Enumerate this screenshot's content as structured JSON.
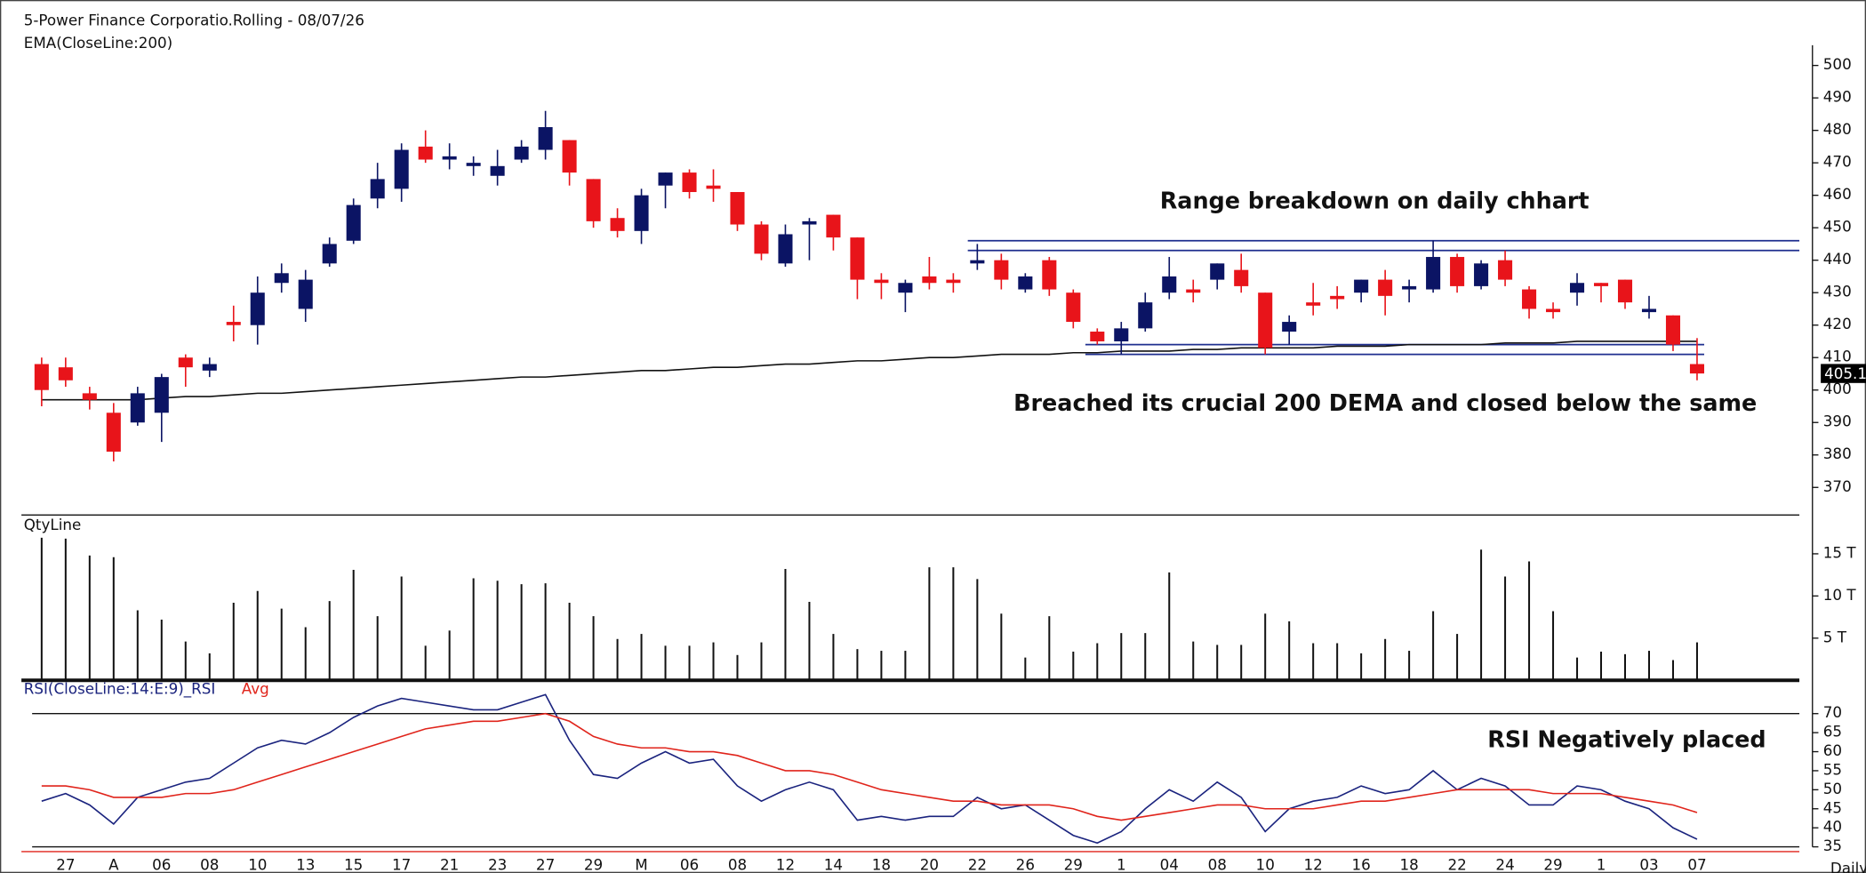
{
  "chart_data": [
    {
      "type": "candlestick",
      "title": "5-Power Finance Corporatio.Rolling - 08/07/26",
      "open": [
        408,
        407,
        399,
        393,
        390,
        393,
        410,
        406,
        421,
        420,
        433,
        425,
        439,
        446,
        459,
        462,
        475,
        471,
        469,
        466,
        471,
        474,
        477,
        465,
        453,
        449,
        463,
        467,
        463,
        461,
        451,
        439,
        451,
        454,
        447,
        434,
        430,
        435,
        434,
        439,
        440,
        431,
        440,
        430,
        418,
        415,
        419,
        430,
        431,
        434,
        437,
        430,
        418,
        427,
        429,
        430,
        434,
        431,
        431,
        441,
        432,
        440,
        431,
        425,
        430,
        433,
        434,
        424,
        423,
        408
      ],
      "high": [
        410,
        410,
        401,
        396,
        401,
        405,
        411,
        410,
        426,
        435,
        439,
        437,
        447,
        459,
        470,
        476,
        480,
        476,
        472,
        474,
        477,
        486,
        477,
        465,
        456,
        462,
        467,
        468,
        468,
        461,
        452,
        451,
        453,
        454,
        447,
        436,
        434,
        441,
        436,
        445,
        442,
        436,
        441,
        431,
        419,
        421,
        430,
        441,
        434,
        439,
        442,
        430,
        423,
        433,
        432,
        434,
        437,
        434,
        446,
        442,
        440,
        443,
        432,
        427,
        436,
        433,
        434,
        429,
        423,
        416
      ],
      "low": [
        395,
        401,
        394,
        378,
        389,
        384,
        401,
        404,
        415,
        414,
        430,
        421,
        438,
        445,
        456,
        458,
        470,
        468,
        466,
        463,
        470,
        471,
        463,
        450,
        447,
        445,
        456,
        459,
        458,
        449,
        440,
        438,
        440,
        443,
        428,
        428,
        424,
        431,
        430,
        437,
        431,
        430,
        429,
        419,
        414,
        411,
        418,
        428,
        427,
        431,
        430,
        411,
        414,
        423,
        425,
        427,
        423,
        427,
        430,
        430,
        431,
        432,
        422,
        422,
        426,
        427,
        425,
        422,
        412,
        403
      ],
      "close": [
        400,
        403,
        397,
        381,
        399,
        404,
        407,
        408,
        420,
        430,
        436,
        434,
        445,
        457,
        465,
        474,
        471,
        472,
        470,
        469,
        475,
        481,
        467,
        452,
        449,
        460,
        467,
        461,
        462,
        451,
        442,
        448,
        452,
        447,
        434,
        433,
        433,
        433,
        433,
        440,
        434,
        435,
        431,
        421,
        415,
        419,
        427,
        435,
        430,
        439,
        432,
        413,
        421,
        426,
        428,
        434,
        429,
        432,
        441,
        432,
        439,
        434,
        425,
        424,
        433,
        432,
        427,
        425,
        414,
        405.1
      ],
      "up_color": "#0b1464",
      "down_color": "#e8141a",
      "series": [
        {
          "name": "EMA(CloseLine:200)",
          "color": "#111111",
          "values": [
            397,
            397,
            397,
            397,
            397,
            397.5,
            398,
            398,
            398.5,
            399,
            399,
            399.5,
            400,
            400.5,
            401,
            401.5,
            402,
            402.5,
            403,
            403.5,
            404,
            404,
            404.5,
            405,
            405.5,
            406,
            406,
            406.5,
            407,
            407,
            407.5,
            408,
            408,
            408.5,
            409,
            409,
            409.5,
            410,
            410,
            410.5,
            411,
            411,
            411,
            411.5,
            411.5,
            412,
            412,
            412,
            412.5,
            412.5,
            413,
            413,
            413,
            413,
            413.5,
            413.5,
            413.5,
            414,
            414,
            414,
            414,
            414.5,
            414.5,
            414.5,
            415,
            415,
            415,
            415,
            415,
            415
          ]
        }
      ],
      "levels": [
        446,
        443,
        414,
        411
      ],
      "level_color": "#1f2f8f",
      "ylim": [
        361.5,
        516.5
      ],
      "yticks": [
        370,
        380,
        390,
        400,
        410,
        420,
        430,
        440,
        450,
        460,
        470,
        480,
        490,
        500
      ],
      "annotations": [
        "Range breakdown on daily chhart",
        "Breached its crucial 200 DEMA and closed below the same"
      ]
    },
    {
      "type": "bar",
      "series": [
        {
          "name": "QtyLine",
          "color": "#111111",
          "values": [
            16.9,
            16.8,
            14.8,
            14.6,
            8.3,
            7.2,
            4.6,
            3.2,
            9.2,
            10.6,
            8.5,
            6.3,
            9.4,
            13.1,
            7.6,
            12.3,
            4.1,
            5.9,
            12.1,
            11.8,
            11.4,
            11.5,
            9.2,
            7.6,
            4.9,
            5.5,
            4.1,
            4.1,
            4.5,
            3.0,
            4.5,
            13.2,
            9.3,
            5.5,
            3.7,
            3.5,
            3.5,
            13.4,
            13.4,
            12.0,
            7.9,
            2.7,
            7.6,
            3.4,
            4.4,
            5.6,
            5.6,
            12.8,
            4.6,
            4.2,
            4.2,
            7.9,
            7.0,
            4.4,
            4.4,
            3.2,
            4.9,
            3.5,
            8.2,
            5.5,
            15.5,
            12.3,
            14.1,
            8.2,
            2.7,
            3.4,
            3.1,
            3.5,
            2.4,
            4.5
          ]
        }
      ],
      "ylim": [
        0,
        19.6
      ],
      "yticks": [
        {
          "value": 5,
          "label": "5 T"
        },
        {
          "value": 10,
          "label": "10 T"
        },
        {
          "value": 15,
          "label": "15 T"
        }
      ]
    },
    {
      "type": "line",
      "categories": [
        null,
        "27",
        null,
        "A",
        null,
        "06",
        null,
        "08",
        null,
        "10",
        null,
        "13",
        null,
        "15",
        null,
        "17",
        null,
        "21",
        null,
        "23",
        null,
        "27",
        null,
        "29",
        null,
        "M",
        null,
        "06",
        null,
        "08",
        null,
        "12",
        null,
        "14",
        null,
        "18",
        null,
        "20",
        null,
        "22",
        null,
        "26",
        null,
        "29",
        null,
        "1",
        null,
        "04",
        null,
        "08",
        null,
        "10",
        null,
        "12",
        null,
        "16",
        null,
        "18",
        null,
        "22",
        null,
        "24",
        null,
        "29",
        null,
        "1",
        null,
        "03",
        null,
        "07"
      ],
      "period": "Daily",
      "series": [
        {
          "name": "RSI(CloseLine:14:E:9)_RSI",
          "color": "#1a237e",
          "values": [
            47,
            49,
            46,
            41,
            48,
            50,
            52,
            53,
            57,
            61,
            63,
            62,
            65,
            69,
            72,
            74,
            73,
            72,
            71,
            71,
            73,
            75,
            63,
            54,
            53,
            57,
            60,
            57,
            58,
            51,
            47,
            50,
            52,
            50,
            42,
            43,
            42,
            43,
            43,
            48,
            45,
            46,
            42,
            38,
            36,
            39,
            45,
            50,
            47,
            52,
            48,
            39,
            45,
            47,
            48,
            51,
            49,
            50,
            55,
            50,
            53,
            51,
            46,
            46,
            51,
            50,
            47,
            45,
            40,
            37
          ]
        },
        {
          "name": "Avg",
          "color": "#e0241b",
          "values": [
            51,
            51,
            50,
            48,
            48,
            48,
            49,
            49,
            50,
            52,
            54,
            56,
            58,
            60,
            62,
            64,
            66,
            67,
            68,
            68,
            69,
            70,
            68,
            64,
            62,
            61,
            61,
            60,
            60,
            59,
            57,
            55,
            55,
            54,
            52,
            50,
            49,
            48,
            47,
            47,
            46,
            46,
            46,
            45,
            43,
            42,
            43,
            44,
            45,
            46,
            46,
            45,
            45,
            45,
            46,
            47,
            47,
            48,
            49,
            50,
            50,
            50,
            50,
            49,
            49,
            49,
            48,
            47,
            46,
            44
          ]
        }
      ],
      "ylim": [
        33.75,
        78.75
      ],
      "yticks": [
        35,
        40,
        45,
        50,
        55,
        60,
        65,
        70
      ],
      "reference_lines": [
        70,
        35
      ],
      "annotations": [
        "RSI Negatively placed"
      ]
    }
  ]
}
